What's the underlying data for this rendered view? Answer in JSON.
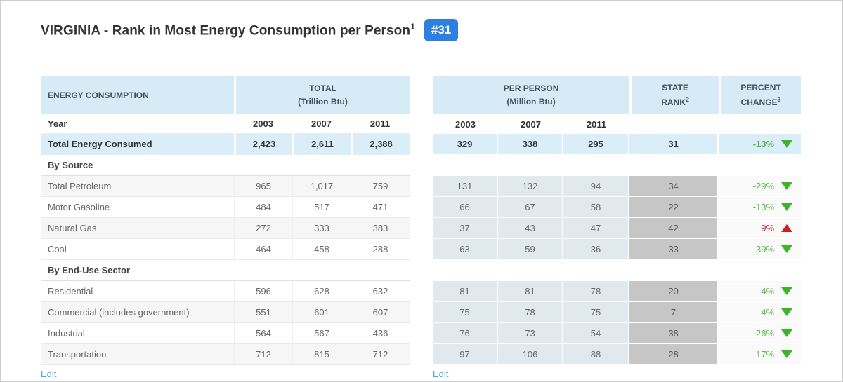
{
  "title": {
    "text": "VIRGINIA - Rank in Most Energy Consumption per Person",
    "footnote": "1",
    "badge": "#31"
  },
  "left_table": {
    "col_header": "ENERGY CONSUMPTION",
    "group_header": "TOTAL",
    "group_subheader": "(Trillion Btu)",
    "year_label": "Year",
    "years": [
      "2003",
      "2007",
      "2011"
    ],
    "edit_label": "Edit"
  },
  "right_table": {
    "group_header": "PER PERSON",
    "group_subheader": "(Million Btu)",
    "rank_header_line1": "STATE",
    "rank_header_line2": "RANK",
    "rank_footnote": "2",
    "percent_header_line1": "PERCENT",
    "percent_header_line2": "CHANGE",
    "percent_footnote": "3",
    "years": [
      "2003",
      "2007",
      "2011"
    ],
    "edit_label": "Edit"
  },
  "rows": [
    {
      "type": "total",
      "label": "Total Energy Consumed",
      "total_btu": [
        "2,423",
        "2,611",
        "2,388"
      ],
      "per_person": [
        "329",
        "338",
        "295"
      ],
      "state_rank": "31",
      "percent_change": "-13%",
      "direction": "down"
    },
    {
      "type": "section",
      "label": "By Source"
    },
    {
      "type": "data",
      "label": "Total Petroleum",
      "total_btu": [
        "965",
        "1,017",
        "759"
      ],
      "per_person": [
        "131",
        "132",
        "94"
      ],
      "state_rank": "34",
      "percent_change": "-29%",
      "direction": "down"
    },
    {
      "type": "data",
      "label": "Motor Gasoline",
      "total_btu": [
        "484",
        "517",
        "471"
      ],
      "per_person": [
        "66",
        "67",
        "58"
      ],
      "state_rank": "22",
      "percent_change": "-13%",
      "direction": "down"
    },
    {
      "type": "data",
      "label": "Natural Gas",
      "total_btu": [
        "272",
        "333",
        "383"
      ],
      "per_person": [
        "37",
        "43",
        "47"
      ],
      "state_rank": "42",
      "percent_change": "9%",
      "direction": "up"
    },
    {
      "type": "data",
      "label": "Coal",
      "total_btu": [
        "464",
        "458",
        "288"
      ],
      "per_person": [
        "63",
        "59",
        "36"
      ],
      "state_rank": "33",
      "percent_change": "-39%",
      "direction": "down"
    },
    {
      "type": "section",
      "label": "By End-Use Sector"
    },
    {
      "type": "data",
      "label": "Residential",
      "total_btu": [
        "596",
        "628",
        "632"
      ],
      "per_person": [
        "81",
        "81",
        "78"
      ],
      "state_rank": "20",
      "percent_change": "-4%",
      "direction": "down"
    },
    {
      "type": "data",
      "label": "Commercial (includes government)",
      "total_btu": [
        "551",
        "601",
        "607"
      ],
      "per_person": [
        "75",
        "78",
        "75"
      ],
      "state_rank": "7",
      "percent_change": "-4%",
      "direction": "down"
    },
    {
      "type": "data",
      "label": "Industrial",
      "total_btu": [
        "564",
        "567",
        "436"
      ],
      "per_person": [
        "76",
        "73",
        "54"
      ],
      "state_rank": "38",
      "percent_change": "-26%",
      "direction": "down"
    },
    {
      "type": "data",
      "label": "Transportation",
      "total_btu": [
        "712",
        "815",
        "712"
      ],
      "per_person": [
        "97",
        "106",
        "88"
      ],
      "state_rank": "28",
      "percent_change": "-17%",
      "direction": "down"
    }
  ],
  "colors": {
    "badge_blue": "#2d7fe0",
    "header_blue": "#d7ebf7",
    "total_row_blue": "#d9eef9",
    "per_person_cell": "#dfe9ee",
    "rank_cell_gray": "#c6c6c6",
    "percent_cell": "#fafafa",
    "decrease_green": "#5cb64a",
    "decrease_triangle_green": "#3fb428",
    "increase_red": "#c8252c",
    "increase_triangle_red": "#cb2027",
    "link_blue": "#46a5e0"
  }
}
